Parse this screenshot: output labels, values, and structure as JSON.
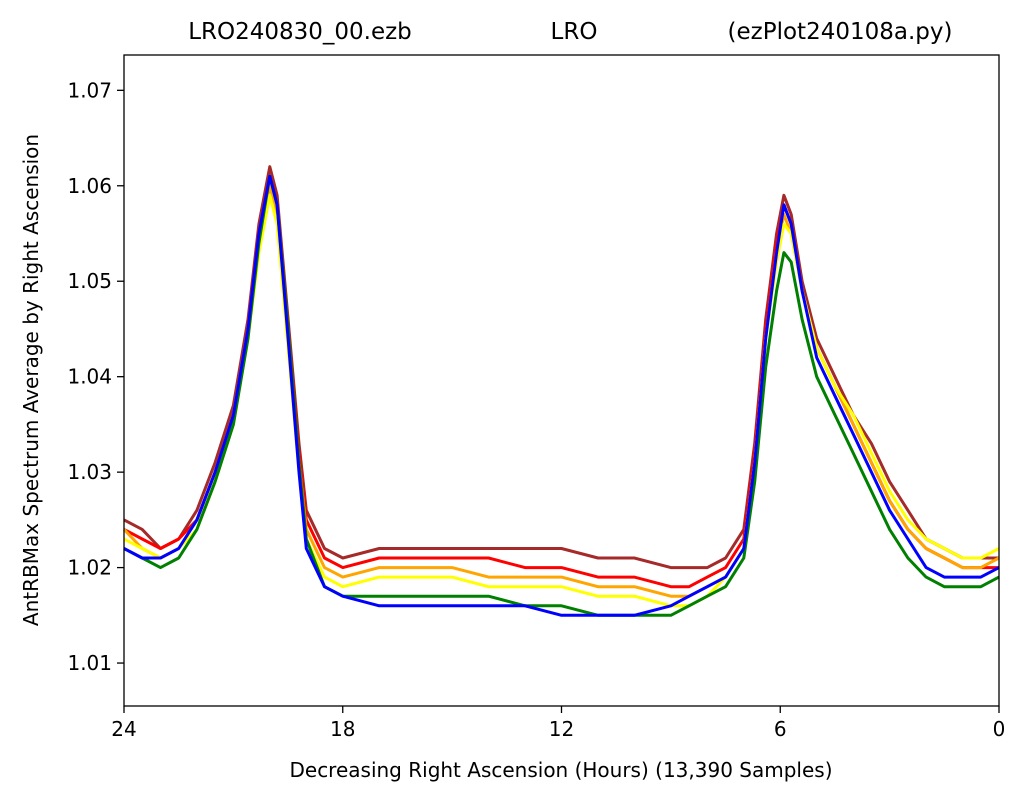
{
  "chart_data": {
    "type": "line",
    "title_left": "LRO240830_00.ezb",
    "title_center": "LRO",
    "title_right": "(ezPlot240108a.py)",
    "xlabel": "Decreasing Right Ascension (Hours) (13,390 Samples)",
    "ylabel": "AntRBMax Spectrum Average by Right Ascension",
    "xlim": [
      24,
      0
    ],
    "ylim": [
      1.0055,
      1.0737
    ],
    "x_ticks": [
      24,
      18,
      12,
      6,
      0
    ],
    "y_ticks": [
      1.01,
      1.02,
      1.03,
      1.04,
      1.05,
      1.06,
      1.07
    ],
    "grid": false,
    "legend": "none",
    "series": [
      {
        "color": "#a52a2a",
        "values": [
          [
            24,
            1.025
          ],
          [
            23.5,
            1.024
          ],
          [
            23,
            1.022
          ],
          [
            22.5,
            1.023
          ],
          [
            22,
            1.026
          ],
          [
            21.5,
            1.031
          ],
          [
            21,
            1.037
          ],
          [
            20.6,
            1.046
          ],
          [
            20.3,
            1.056
          ],
          [
            20.0,
            1.062
          ],
          [
            19.8,
            1.059
          ],
          [
            19.5,
            1.046
          ],
          [
            19.2,
            1.033
          ],
          [
            19.0,
            1.026
          ],
          [
            18.5,
            1.022
          ],
          [
            18,
            1.021
          ],
          [
            17,
            1.022
          ],
          [
            16,
            1.022
          ],
          [
            15,
            1.022
          ],
          [
            14,
            1.022
          ],
          [
            13,
            1.022
          ],
          [
            12,
            1.022
          ],
          [
            11,
            1.021
          ],
          [
            10,
            1.021
          ],
          [
            9,
            1.02
          ],
          [
            8.5,
            1.02
          ],
          [
            8,
            1.02
          ],
          [
            7.5,
            1.021
          ],
          [
            7,
            1.024
          ],
          [
            6.7,
            1.033
          ],
          [
            6.4,
            1.046
          ],
          [
            6.1,
            1.055
          ],
          [
            5.9,
            1.059
          ],
          [
            5.7,
            1.057
          ],
          [
            5.4,
            1.05
          ],
          [
            5.0,
            1.044
          ],
          [
            4.5,
            1.04
          ],
          [
            4.0,
            1.036
          ],
          [
            3.5,
            1.033
          ],
          [
            3.0,
            1.029
          ],
          [
            2.5,
            1.026
          ],
          [
            2.0,
            1.023
          ],
          [
            1.5,
            1.022
          ],
          [
            1.0,
            1.021
          ],
          [
            0.5,
            1.021
          ],
          [
            0,
            1.021
          ]
        ]
      },
      {
        "color": "#ff0000",
        "values": [
          [
            24,
            1.024
          ],
          [
            23.5,
            1.023
          ],
          [
            23,
            1.022
          ],
          [
            22.5,
            1.023
          ],
          [
            22,
            1.025
          ],
          [
            21.5,
            1.03
          ],
          [
            21,
            1.036
          ],
          [
            20.6,
            1.045
          ],
          [
            20.3,
            1.055
          ],
          [
            20.0,
            1.061
          ],
          [
            19.8,
            1.058
          ],
          [
            19.5,
            1.045
          ],
          [
            19.2,
            1.032
          ],
          [
            19.0,
            1.025
          ],
          [
            18.5,
            1.021
          ],
          [
            18,
            1.02
          ],
          [
            17,
            1.021
          ],
          [
            16,
            1.021
          ],
          [
            15,
            1.021
          ],
          [
            14,
            1.021
          ],
          [
            13,
            1.02
          ],
          [
            12,
            1.02
          ],
          [
            11,
            1.019
          ],
          [
            10,
            1.019
          ],
          [
            9,
            1.018
          ],
          [
            8.5,
            1.018
          ],
          [
            8,
            1.019
          ],
          [
            7.5,
            1.02
          ],
          [
            7,
            1.023
          ],
          [
            6.7,
            1.032
          ],
          [
            6.4,
            1.045
          ],
          [
            6.1,
            1.054
          ],
          [
            5.9,
            1.058
          ],
          [
            5.7,
            1.056
          ],
          [
            5.4,
            1.049
          ],
          [
            5.0,
            1.043
          ],
          [
            4.5,
            1.039
          ],
          [
            4.0,
            1.035
          ],
          [
            3.5,
            1.031
          ],
          [
            3.0,
            1.027
          ],
          [
            2.5,
            1.024
          ],
          [
            2.0,
            1.022
          ],
          [
            1.5,
            1.021
          ],
          [
            1.0,
            1.02
          ],
          [
            0.5,
            1.02
          ],
          [
            0,
            1.02
          ]
        ]
      },
      {
        "color": "#ffa500",
        "values": [
          [
            24,
            1.024
          ],
          [
            23.5,
            1.022
          ],
          [
            23,
            1.021
          ],
          [
            22.5,
            1.022
          ],
          [
            22,
            1.025
          ],
          [
            21.5,
            1.03
          ],
          [
            21,
            1.036
          ],
          [
            20.6,
            1.045
          ],
          [
            20.3,
            1.054
          ],
          [
            20.0,
            1.06
          ],
          [
            19.8,
            1.057
          ],
          [
            19.5,
            1.044
          ],
          [
            19.2,
            1.031
          ],
          [
            19.0,
            1.024
          ],
          [
            18.5,
            1.02
          ],
          [
            18,
            1.019
          ],
          [
            17,
            1.02
          ],
          [
            16,
            1.02
          ],
          [
            15,
            1.02
          ],
          [
            14,
            1.019
          ],
          [
            13,
            1.019
          ],
          [
            12,
            1.019
          ],
          [
            11,
            1.018
          ],
          [
            10,
            1.018
          ],
          [
            9,
            1.017
          ],
          [
            8.5,
            1.017
          ],
          [
            8,
            1.018
          ],
          [
            7.5,
            1.019
          ],
          [
            7,
            1.022
          ],
          [
            6.7,
            1.031
          ],
          [
            6.4,
            1.044
          ],
          [
            6.1,
            1.053
          ],
          [
            5.9,
            1.057
          ],
          [
            5.7,
            1.055
          ],
          [
            5.4,
            1.049
          ],
          [
            5.0,
            1.043
          ],
          [
            4.5,
            1.039
          ],
          [
            4.0,
            1.035
          ],
          [
            3.5,
            1.031
          ],
          [
            3.0,
            1.027
          ],
          [
            2.5,
            1.024
          ],
          [
            2.0,
            1.022
          ],
          [
            1.5,
            1.021
          ],
          [
            1.0,
            1.02
          ],
          [
            0.5,
            1.02
          ],
          [
            0,
            1.021
          ]
        ]
      },
      {
        "color": "#ffff00",
        "values": [
          [
            24,
            1.023
          ],
          [
            23.5,
            1.022
          ],
          [
            23,
            1.021
          ],
          [
            22.5,
            1.022
          ],
          [
            22,
            1.024
          ],
          [
            21.5,
            1.029
          ],
          [
            21,
            1.035
          ],
          [
            20.6,
            1.044
          ],
          [
            20.3,
            1.053
          ],
          [
            20.0,
            1.059
          ],
          [
            19.8,
            1.056
          ],
          [
            19.5,
            1.043
          ],
          [
            19.2,
            1.03
          ],
          [
            19.0,
            1.023
          ],
          [
            18.5,
            1.019
          ],
          [
            18,
            1.018
          ],
          [
            17,
            1.019
          ],
          [
            16,
            1.019
          ],
          [
            15,
            1.019
          ],
          [
            14,
            1.018
          ],
          [
            13,
            1.018
          ],
          [
            12,
            1.018
          ],
          [
            11,
            1.017
          ],
          [
            10,
            1.017
          ],
          [
            9,
            1.016
          ],
          [
            8.5,
            1.016
          ],
          [
            8,
            1.017
          ],
          [
            7.5,
            1.019
          ],
          [
            7,
            1.022
          ],
          [
            6.7,
            1.031
          ],
          [
            6.4,
            1.044
          ],
          [
            6.1,
            1.052
          ],
          [
            5.9,
            1.056
          ],
          [
            5.7,
            1.055
          ],
          [
            5.4,
            1.049
          ],
          [
            5.0,
            1.043
          ],
          [
            4.5,
            1.039
          ],
          [
            4.0,
            1.036
          ],
          [
            3.5,
            1.032
          ],
          [
            3.0,
            1.028
          ],
          [
            2.5,
            1.025
          ],
          [
            2.0,
            1.023
          ],
          [
            1.5,
            1.022
          ],
          [
            1.0,
            1.021
          ],
          [
            0.5,
            1.021
          ],
          [
            0,
            1.022
          ]
        ]
      },
      {
        "color": "#008000",
        "values": [
          [
            24,
            1.022
          ],
          [
            23.5,
            1.021
          ],
          [
            23,
            1.02
          ],
          [
            22.5,
            1.021
          ],
          [
            22,
            1.024
          ],
          [
            21.5,
            1.029
          ],
          [
            21,
            1.035
          ],
          [
            20.6,
            1.044
          ],
          [
            20.3,
            1.054
          ],
          [
            20.0,
            1.061
          ],
          [
            19.8,
            1.058
          ],
          [
            19.5,
            1.045
          ],
          [
            19.2,
            1.031
          ],
          [
            19.0,
            1.023
          ],
          [
            18.5,
            1.018
          ],
          [
            18,
            1.017
          ],
          [
            17,
            1.017
          ],
          [
            16,
            1.017
          ],
          [
            15,
            1.017
          ],
          [
            14,
            1.017
          ],
          [
            13,
            1.016
          ],
          [
            12,
            1.016
          ],
          [
            11,
            1.015
          ],
          [
            10,
            1.015
          ],
          [
            9,
            1.015
          ],
          [
            8.5,
            1.016
          ],
          [
            8,
            1.017
          ],
          [
            7.5,
            1.018
          ],
          [
            7,
            1.021
          ],
          [
            6.7,
            1.029
          ],
          [
            6.4,
            1.041
          ],
          [
            6.1,
            1.049
          ],
          [
            5.9,
            1.053
          ],
          [
            5.7,
            1.052
          ],
          [
            5.4,
            1.046
          ],
          [
            5.0,
            1.04
          ],
          [
            4.5,
            1.036
          ],
          [
            4.0,
            1.032
          ],
          [
            3.5,
            1.028
          ],
          [
            3.0,
            1.024
          ],
          [
            2.5,
            1.021
          ],
          [
            2.0,
            1.019
          ],
          [
            1.5,
            1.018
          ],
          [
            1.0,
            1.018
          ],
          [
            0.5,
            1.018
          ],
          [
            0,
            1.019
          ]
        ]
      },
      {
        "color": "#0000ff",
        "values": [
          [
            24,
            1.022
          ],
          [
            23.5,
            1.021
          ],
          [
            23,
            1.021
          ],
          [
            22.5,
            1.022
          ],
          [
            22,
            1.025
          ],
          [
            21.5,
            1.03
          ],
          [
            21,
            1.036
          ],
          [
            20.6,
            1.045
          ],
          [
            20.3,
            1.055
          ],
          [
            20.0,
            1.061
          ],
          [
            19.8,
            1.058
          ],
          [
            19.5,
            1.044
          ],
          [
            19.2,
            1.03
          ],
          [
            19.0,
            1.022
          ],
          [
            18.5,
            1.018
          ],
          [
            18,
            1.017
          ],
          [
            17,
            1.016
          ],
          [
            16,
            1.016
          ],
          [
            15,
            1.016
          ],
          [
            14,
            1.016
          ],
          [
            13,
            1.016
          ],
          [
            12,
            1.015
          ],
          [
            11,
            1.015
          ],
          [
            10,
            1.015
          ],
          [
            9,
            1.016
          ],
          [
            8.5,
            1.017
          ],
          [
            8,
            1.018
          ],
          [
            7.5,
            1.019
          ],
          [
            7,
            1.022
          ],
          [
            6.7,
            1.031
          ],
          [
            6.4,
            1.044
          ],
          [
            6.1,
            1.053
          ],
          [
            5.9,
            1.058
          ],
          [
            5.7,
            1.056
          ],
          [
            5.4,
            1.049
          ],
          [
            5.0,
            1.042
          ],
          [
            4.5,
            1.038
          ],
          [
            4.0,
            1.034
          ],
          [
            3.5,
            1.03
          ],
          [
            3.0,
            1.026
          ],
          [
            2.5,
            1.023
          ],
          [
            2.0,
            1.02
          ],
          [
            1.5,
            1.019
          ],
          [
            1.0,
            1.019
          ],
          [
            0.5,
            1.019
          ],
          [
            0,
            1.02
          ]
        ]
      }
    ]
  }
}
